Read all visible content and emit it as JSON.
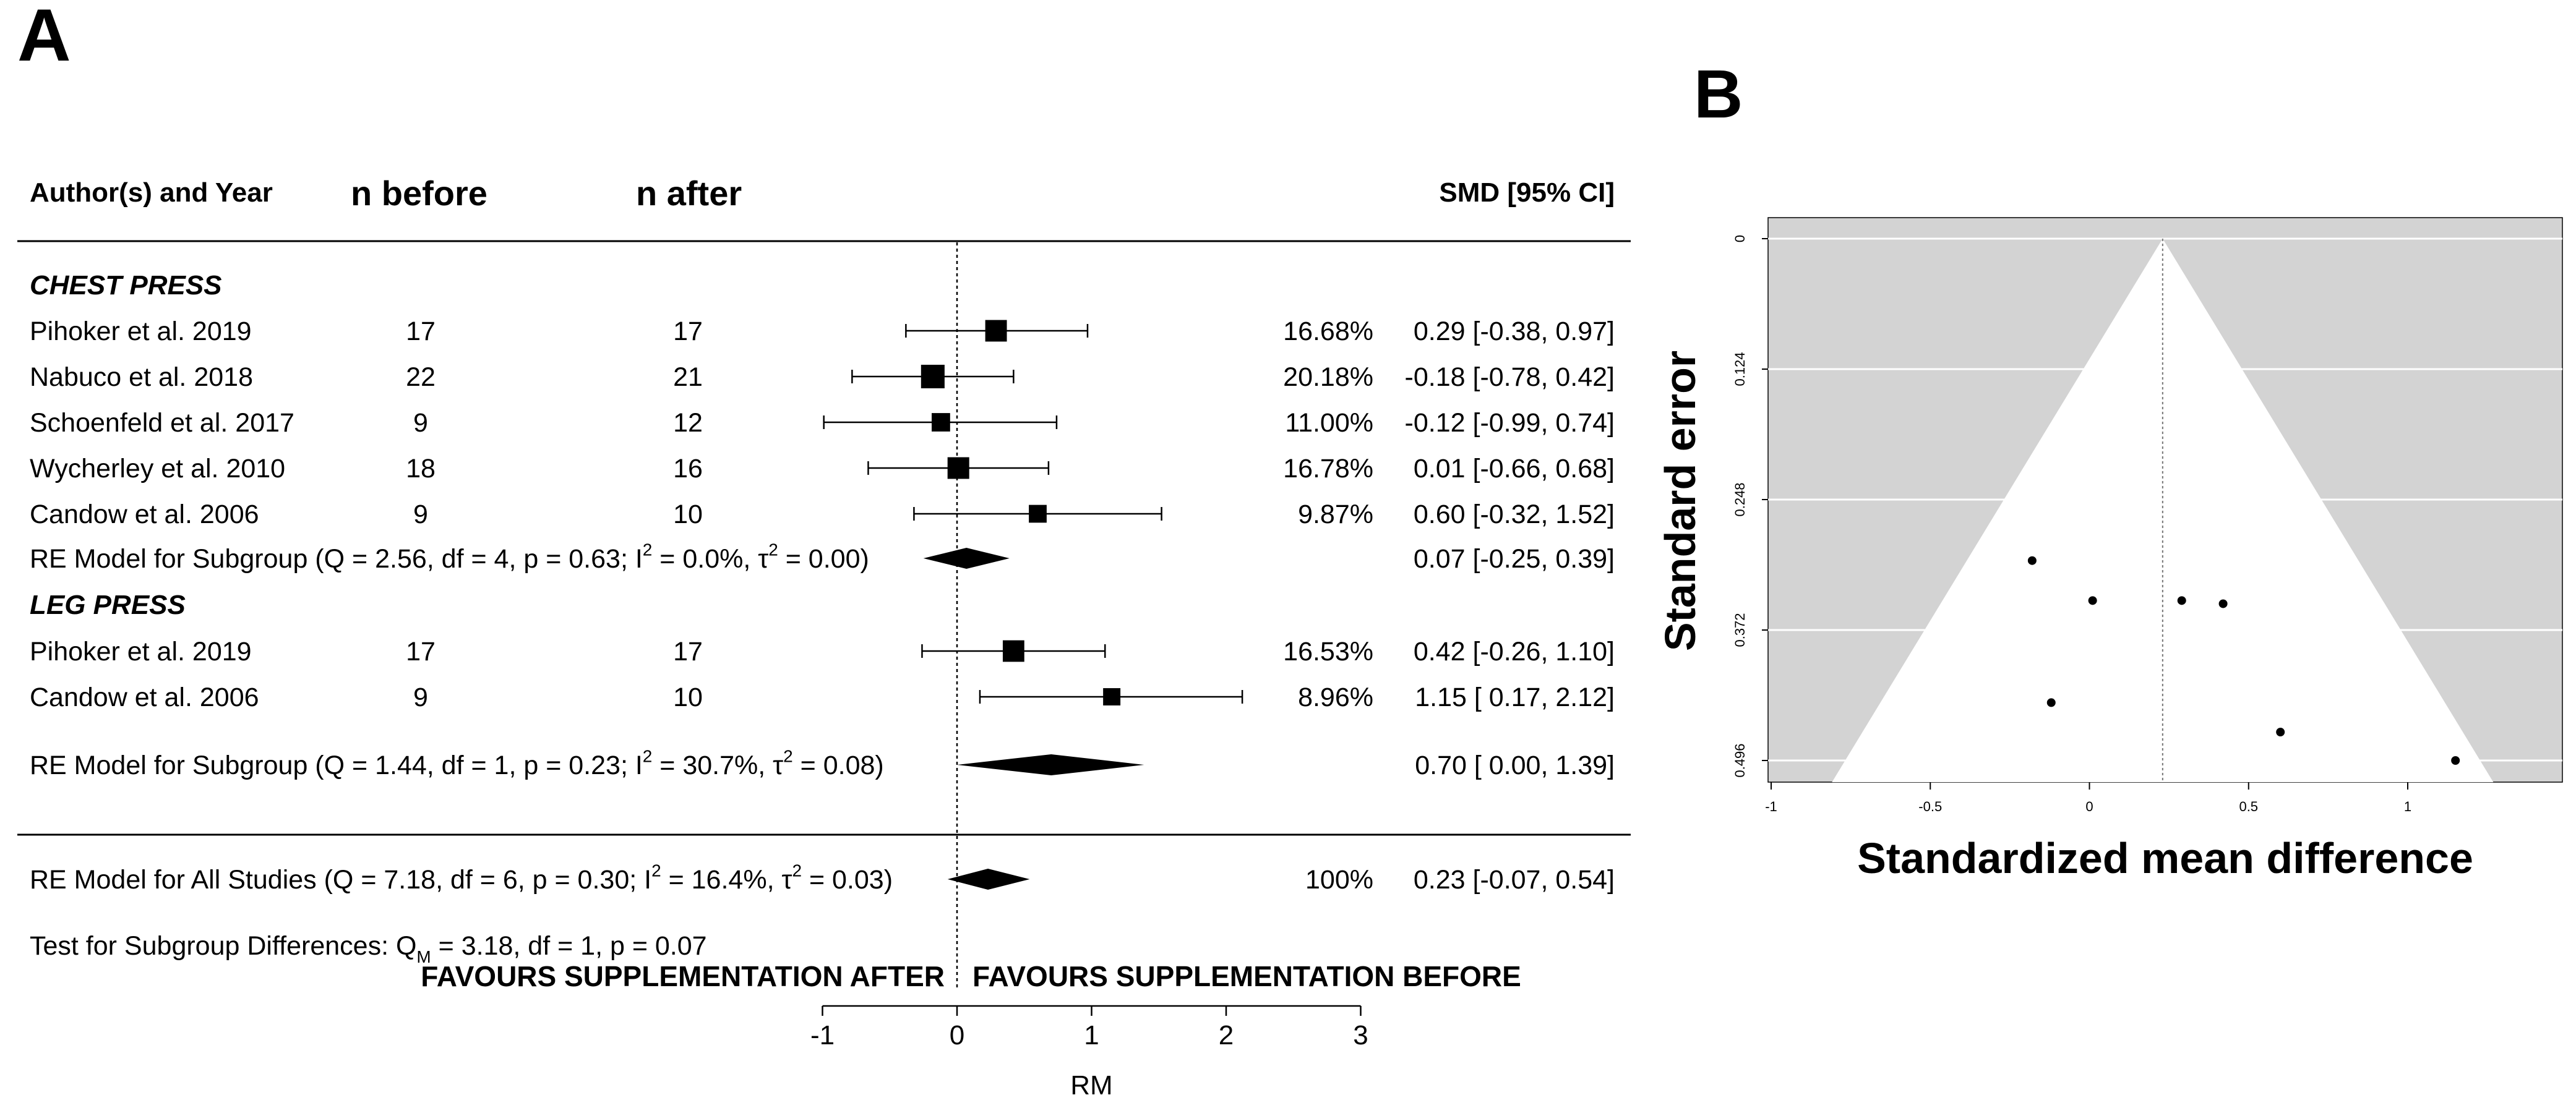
{
  "panels": {
    "a_label": "A",
    "b_label": "B"
  },
  "chart_data": [
    {
      "type": "forest",
      "panel": "A",
      "headers": {
        "study": "Author(s) and Year",
        "n_before": "n before",
        "n_after": "n after",
        "smd": "SMD [95% CI]"
      },
      "xlim": [
        -1,
        3
      ],
      "xticks": [
        -1,
        0,
        1,
        2,
        3
      ],
      "tick_labels": [
        "-1",
        "0",
        "1",
        "2",
        "3"
      ],
      "xlabel": "RM",
      "favours_left": "FAVOURS SUPPLEMENTATION AFTER",
      "favours_right": "FAVOURS SUPPLEMENTATION BEFORE",
      "subgroups": [
        {
          "name": "CHEST PRESS",
          "studies": [
            {
              "study": "Pihoker et al. 2019",
              "n_before": "17",
              "n_after": "17",
              "weight": "16.68%",
              "smd": 0.29,
              "lo": -0.38,
              "hi": 0.97,
              "ci_text": "0.29 [-0.38, 0.97]"
            },
            {
              "study": "Nabuco et al. 2018",
              "n_before": "22",
              "n_after": "21",
              "weight": "20.18%",
              "smd": -0.18,
              "lo": -0.78,
              "hi": 0.42,
              "ci_text": "-0.18 [-0.78, 0.42]"
            },
            {
              "study": "Schoenfeld et al. 2017",
              "n_before": "9",
              "n_after": "12",
              "weight": "11.00%",
              "smd": -0.12,
              "lo": -0.99,
              "hi": 0.74,
              "ci_text": "-0.12 [-0.99, 0.74]"
            },
            {
              "study": "Wycherley et al. 2010",
              "n_before": "18",
              "n_after": "16",
              "weight": "16.78%",
              "smd": 0.01,
              "lo": -0.66,
              "hi": 0.68,
              "ci_text": "0.01 [-0.66, 0.68]"
            },
            {
              "study": "Candow et al. 2006",
              "n_before": "9",
              "n_after": "10",
              "weight": "9.87%",
              "smd": 0.6,
              "lo": -0.32,
              "hi": 1.52,
              "ci_text": "0.60 [-0.32, 1.52]"
            }
          ],
          "model": {
            "label": "RE Model for Subgroup (Q = 2.56, df = 4, p = 0.63; I",
            "i2": "2",
            "mid": " = 0.0%, τ",
            "tau2": "2",
            "end": " = 0.00)",
            "est": 0.07,
            "lo": -0.25,
            "hi": 0.39,
            "ci_text": "0.07 [-0.25, 0.39]"
          }
        },
        {
          "name": "LEG PRESS",
          "studies": [
            {
              "study": "Pihoker et al. 2019",
              "n_before": "17",
              "n_after": "17",
              "weight": "16.53%",
              "smd": 0.42,
              "lo": -0.26,
              "hi": 1.1,
              "ci_text": "0.42 [-0.26, 1.10]"
            },
            {
              "study": "Candow et al. 2006",
              "n_before": "9",
              "n_after": "10",
              "weight": "8.96%",
              "smd": 1.15,
              "lo": 0.17,
              "hi": 2.12,
              "ci_text": "1.15 [ 0.17, 2.12]"
            }
          ],
          "model": {
            "label": "RE Model for Subgroup (Q = 1.44, df = 1, p = 0.23; I",
            "i2": "2",
            "mid": " = 30.7%, τ",
            "tau2": "2",
            "end": " = 0.08)",
            "est": 0.7,
            "lo": 0.0,
            "hi": 1.39,
            "ci_text": "0.70 [ 0.00, 1.39]"
          }
        }
      ],
      "overall": {
        "label": "RE Model for All Studies (Q = 7.18, df = 6, p = 0.30; I",
        "i2": "2",
        "mid": " = 16.4%, τ",
        "tau2": "2",
        "end": " = 0.03)",
        "weight": "100%",
        "est": 0.23,
        "lo": -0.07,
        "hi": 0.54,
        "ci_text": "0.23 [-0.07, 0.54]"
      },
      "subgroup_test": {
        "prefix": "Test for Subgroup Differences: Q",
        "sub": "M",
        "rest": " = 3.18, df = 1, p = 0.07"
      }
    },
    {
      "type": "funnel",
      "panel": "B",
      "xlabel": "Standardized mean difference",
      "ylabel": "Standard error",
      "xlim": [
        -1,
        1.5
      ],
      "ylim": [
        0,
        0.53
      ],
      "xticks": [
        -1,
        -0.5,
        0,
        0.5,
        1
      ],
      "xtick_labels": [
        "-1",
        "-0.5",
        "0",
        "0.5",
        "1"
      ],
      "yticks": [
        0,
        0.124,
        0.248,
        0.372,
        0.496
      ],
      "ytick_labels": [
        "0",
        "0.124",
        "0.248",
        "0.372",
        "0.496"
      ],
      "center": 0.23,
      "points": [
        {
          "x": -0.18,
          "y": 0.306
        },
        {
          "x": 0.01,
          "y": 0.344
        },
        {
          "x": 0.29,
          "y": 0.344
        },
        {
          "x": 0.42,
          "y": 0.347
        },
        {
          "x": -0.12,
          "y": 0.441
        },
        {
          "x": 0.6,
          "y": 0.469
        },
        {
          "x": 1.15,
          "y": 0.496
        }
      ]
    }
  ]
}
